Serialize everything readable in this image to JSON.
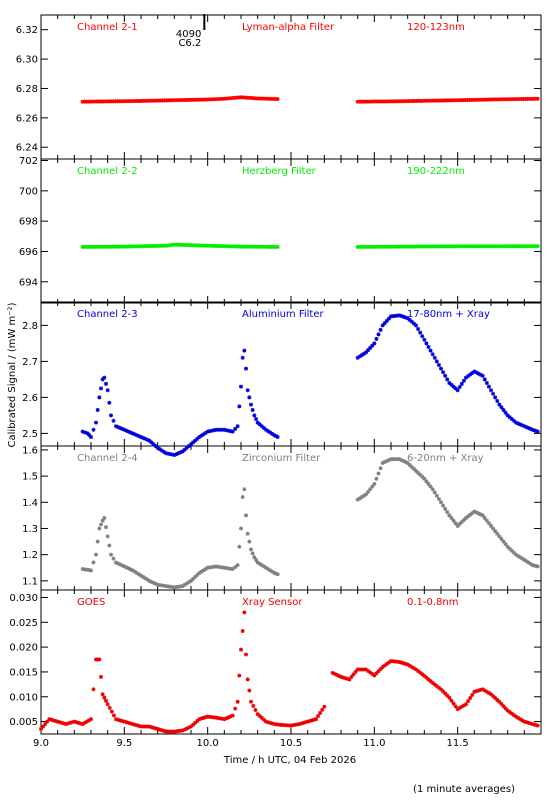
{
  "ylabel": "Calibrated Signal  /  (mW m⁻²)",
  "xlabel": "Time  /  h UTC, 04 Feb 2026",
  "footnote": "(1 minute averages)",
  "marker": {
    "line1": "4090",
    "line2": "C6.2",
    "x": 9.98
  },
  "x_ticks": [
    "9.0",
    "9.5",
    "10.0",
    "10.5",
    "11.0",
    "11.5"
  ],
  "chart_data": [
    {
      "type": "scatter",
      "label": "Channel 2-1",
      "filter": "Lyman-alpha Filter",
      "band": "120-123nm",
      "color": "#ff0000",
      "ylim": [
        6.232,
        6.33
      ],
      "yticks": [
        6.24,
        6.26,
        6.28,
        6.3,
        6.32
      ],
      "ytick_labels": [
        "6.24",
        "6.26",
        "6.28",
        "6.30",
        "6.32"
      ],
      "decimals": 3,
      "segments": [
        {
          "x": [
            9.25,
            9.4,
            9.6,
            9.8,
            10.0,
            10.1,
            10.2,
            10.3,
            10.42
          ],
          "y": [
            6.271,
            6.2712,
            6.2715,
            6.272,
            6.2725,
            6.273,
            6.274,
            6.2732,
            6.2728
          ]
        },
        {
          "x": [
            10.9,
            11.1,
            11.3,
            11.5,
            11.7,
            11.98
          ],
          "y": [
            6.271,
            6.2712,
            6.2716,
            6.272,
            6.2725,
            6.273
          ]
        }
      ]
    },
    {
      "type": "scatter",
      "label": "Channel 2-2",
      "filter": "Herzberg Filter",
      "band": "190-222nm",
      "color": "#00ee00",
      "ylim": [
        692.6,
        702.1
      ],
      "yticks": [
        694,
        696,
        698,
        700,
        702
      ],
      "ytick_labels": [
        "694",
        "696",
        "698",
        "700",
        "702"
      ],
      "decimals": 2,
      "segments": [
        {
          "x": [
            9.25,
            9.5,
            9.75,
            9.8,
            10.0,
            10.2,
            10.42
          ],
          "y": [
            696.3,
            696.32,
            696.38,
            696.45,
            696.38,
            696.32,
            696.3
          ]
        },
        {
          "x": [
            10.9,
            11.2,
            11.5,
            11.75,
            11.98
          ],
          "y": [
            696.3,
            696.32,
            696.34,
            696.34,
            696.35
          ]
        }
      ]
    },
    {
      "type": "scatter",
      "label": "Channel 2-3",
      "filter": "Aluminium Filter",
      "band": "17-80nm + Xray",
      "color": "#0000dd",
      "ylim": [
        2.465,
        2.865
      ],
      "yticks": [
        2.5,
        2.6,
        2.7,
        2.8
      ],
      "ytick_labels": [
        "2.5",
        "2.6",
        "2.7",
        "2.8"
      ],
      "decimals": 3,
      "segments": [
        {
          "x": [
            9.25,
            9.28,
            9.3,
            9.33,
            9.35,
            9.37,
            9.38,
            9.4,
            9.42,
            9.45,
            9.5,
            9.55,
            9.6,
            9.65,
            9.7,
            9.75,
            9.8,
            9.85,
            9.9,
            9.95,
            10.0,
            10.05,
            10.1,
            10.15,
            10.18,
            10.2,
            10.21,
            10.22,
            10.23,
            10.24,
            10.26,
            10.28,
            10.3,
            10.35,
            10.4,
            10.42
          ],
          "y": [
            2.505,
            2.5,
            2.49,
            2.53,
            2.6,
            2.65,
            2.655,
            2.62,
            2.55,
            2.52,
            2.51,
            2.5,
            2.49,
            2.48,
            2.46,
            2.445,
            2.44,
            2.45,
            2.47,
            2.49,
            2.505,
            2.51,
            2.51,
            2.505,
            2.52,
            2.63,
            2.71,
            2.73,
            2.68,
            2.62,
            2.58,
            2.55,
            2.53,
            2.51,
            2.495,
            2.49
          ]
        },
        {
          "x": [
            10.9,
            10.95,
            11.0,
            11.05,
            11.1,
            11.15,
            11.2,
            11.25,
            11.3,
            11.35,
            11.4,
            11.45,
            11.5,
            11.55,
            11.6,
            11.65,
            11.7,
            11.75,
            11.8,
            11.85,
            11.9,
            11.95,
            11.98
          ],
          "y": [
            2.71,
            2.725,
            2.75,
            2.8,
            2.825,
            2.828,
            2.82,
            2.8,
            2.76,
            2.72,
            2.68,
            2.64,
            2.62,
            2.655,
            2.672,
            2.66,
            2.62,
            2.58,
            2.55,
            2.53,
            2.52,
            2.51,
            2.505
          ]
        }
      ]
    },
    {
      "type": "scatter",
      "label": "Channel 2-4",
      "filter": "Zirconium Filter",
      "band": "6-20nm + Xray",
      "color": "#808080",
      "ylim": [
        1.065,
        1.615
      ],
      "yticks": [
        1.1,
        1.2,
        1.3,
        1.4,
        1.5,
        1.6
      ],
      "ytick_labels": [
        "1.1",
        "1.2",
        "1.3",
        "1.4",
        "1.5",
        "1.6"
      ],
      "decimals": 3,
      "segments": [
        {
          "x": [
            9.25,
            9.3,
            9.33,
            9.35,
            9.37,
            9.38,
            9.4,
            9.42,
            9.45,
            9.5,
            9.55,
            9.6,
            9.65,
            9.7,
            9.75,
            9.8,
            9.85,
            9.9,
            9.95,
            10.0,
            10.05,
            10.1,
            10.15,
            10.18,
            10.2,
            10.21,
            10.22,
            10.23,
            10.24,
            10.26,
            10.28,
            10.3,
            10.35,
            10.4,
            10.42
          ],
          "y": [
            1.145,
            1.14,
            1.2,
            1.3,
            1.33,
            1.34,
            1.27,
            1.2,
            1.17,
            1.155,
            1.14,
            1.12,
            1.1,
            1.085,
            1.08,
            1.075,
            1.08,
            1.1,
            1.13,
            1.15,
            1.155,
            1.15,
            1.145,
            1.16,
            1.3,
            1.42,
            1.45,
            1.35,
            1.28,
            1.22,
            1.19,
            1.17,
            1.15,
            1.13,
            1.125
          ]
        },
        {
          "x": [
            10.9,
            10.95,
            11.0,
            11.05,
            11.1,
            11.15,
            11.2,
            11.25,
            11.3,
            11.35,
            11.4,
            11.45,
            11.5,
            11.55,
            11.6,
            11.65,
            11.7,
            11.75,
            11.8,
            11.85,
            11.9,
            11.95,
            11.98
          ],
          "y": [
            1.41,
            1.43,
            1.47,
            1.55,
            1.565,
            1.565,
            1.55,
            1.52,
            1.49,
            1.45,
            1.4,
            1.35,
            1.31,
            1.34,
            1.365,
            1.35,
            1.31,
            1.27,
            1.23,
            1.2,
            1.18,
            1.16,
            1.155
          ]
        }
      ]
    },
    {
      "type": "scatter",
      "label": "GOES",
      "filter": "Xray Sensor",
      "band": "0.1-0.8nm",
      "color": "#ee0000",
      "ylim": [
        0.0025,
        0.0315
      ],
      "yticks": [
        0.005,
        0.01,
        0.015,
        0.02,
        0.025,
        0.03
      ],
      "ytick_labels": [
        "0.005",
        "0.010",
        "0.015",
        "0.020",
        "0.025",
        "0.030"
      ],
      "decimals": 4,
      "segments": [
        {
          "x": [
            9.0,
            9.05,
            9.1,
            9.15,
            9.2,
            9.25,
            9.3,
            9.33,
            9.35,
            9.37,
            9.4,
            9.45,
            9.5,
            9.55,
            9.6,
            9.65,
            9.7,
            9.75,
            9.8,
            9.85,
            9.9,
            9.95,
            10.0,
            10.05,
            10.1,
            10.15,
            10.18,
            10.2,
            10.22,
            10.23,
            10.24,
            10.26,
            10.3,
            10.35,
            10.4,
            10.45,
            10.5,
            10.55,
            10.6,
            10.65,
            10.7
          ],
          "y": [
            0.0035,
            0.0055,
            0.005,
            0.0045,
            0.005,
            0.0045,
            0.0055,
            0.0175,
            0.0175,
            0.0105,
            0.0085,
            0.0055,
            0.005,
            0.0045,
            0.004,
            0.004,
            0.0035,
            0.003,
            0.003,
            0.0032,
            0.004,
            0.0055,
            0.006,
            0.0058,
            0.0055,
            0.0062,
            0.009,
            0.0195,
            0.027,
            0.0185,
            0.0135,
            0.009,
            0.0065,
            0.005,
            0.0045,
            0.0043,
            0.0042,
            0.0045,
            0.005,
            0.0055,
            0.008
          ]
        },
        {
          "x": [
            10.75,
            10.8,
            10.85,
            10.9,
            10.95,
            11.0,
            11.05,
            11.1,
            11.15,
            11.2,
            11.25,
            11.3,
            11.35,
            11.4,
            11.45,
            11.5,
            11.55,
            11.6,
            11.65,
            11.7,
            11.75,
            11.8,
            11.85,
            11.9,
            11.95,
            11.98
          ],
          "y": [
            0.0148,
            0.014,
            0.0135,
            0.0155,
            0.0155,
            0.0143,
            0.016,
            0.0172,
            0.017,
            0.0165,
            0.0155,
            0.0142,
            0.0128,
            0.0115,
            0.0098,
            0.0075,
            0.0085,
            0.011,
            0.0115,
            0.0105,
            0.009,
            0.0072,
            0.006,
            0.005,
            0.0045,
            0.0042
          ]
        }
      ]
    }
  ]
}
